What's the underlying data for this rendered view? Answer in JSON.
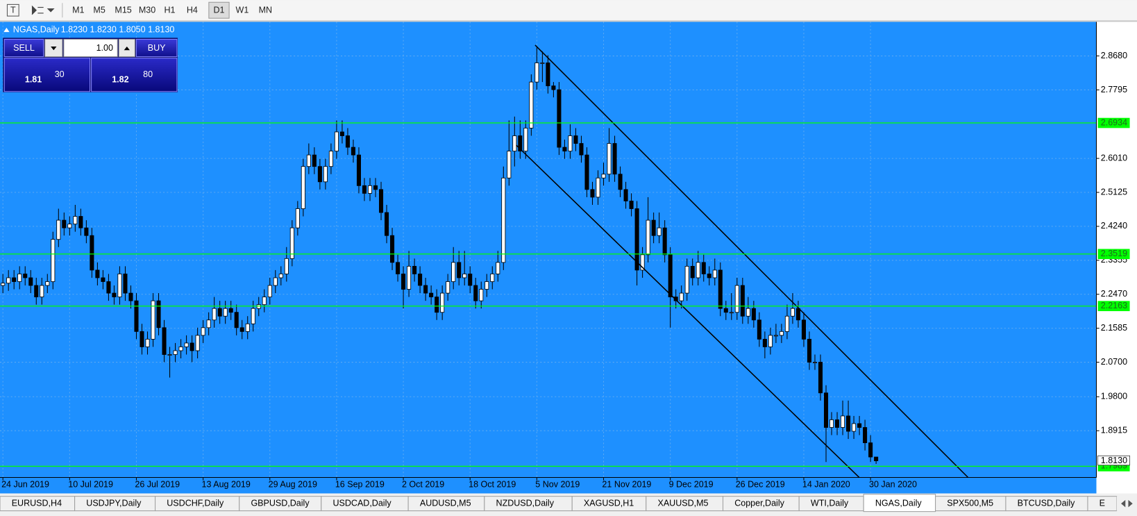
{
  "toolbar": {
    "periods": [
      "M1",
      "M5",
      "M15",
      "M30",
      "H1",
      "H4",
      "D1",
      "W1",
      "MN"
    ],
    "active_index": 6
  },
  "chart_data": {
    "type": "candlestick",
    "title": "NGAS,Daily",
    "quote": [
      "1.8230",
      "1.8230",
      "1.8050",
      "1.8130"
    ],
    "categories": [
      "24 Jun 2019",
      null,
      null,
      null,
      null,
      null,
      null,
      null,
      null,
      null,
      null,
      null,
      "10 Jul 2019",
      null,
      null,
      null,
      null,
      null,
      null,
      null,
      null,
      null,
      null,
      null,
      "26 Jul 2019",
      null,
      null,
      null,
      null,
      null,
      null,
      null,
      null,
      null,
      null,
      null,
      "13 Aug 2019",
      null,
      null,
      null,
      null,
      null,
      null,
      null,
      null,
      null,
      null,
      null,
      "29 Aug 2019",
      null,
      null,
      null,
      null,
      null,
      null,
      null,
      null,
      null,
      null,
      null,
      "16 Sep 2019",
      null,
      null,
      null,
      null,
      null,
      null,
      null,
      null,
      null,
      null,
      null,
      "2 Oct 2019",
      null,
      null,
      null,
      null,
      null,
      null,
      null,
      null,
      null,
      null,
      null,
      "18 Oct 2019",
      null,
      null,
      null,
      null,
      null,
      null,
      null,
      null,
      null,
      null,
      null,
      "5 Nov 2019",
      null,
      null,
      null,
      null,
      null,
      null,
      null,
      null,
      null,
      null,
      null,
      "21 Nov 2019",
      null,
      null,
      null,
      null,
      null,
      null,
      null,
      null,
      null,
      null,
      null,
      "9 Dec 2019",
      null,
      null,
      null,
      null,
      null,
      null,
      null,
      null,
      null,
      null,
      null,
      "26 Dec 2019",
      null,
      null,
      null,
      null,
      null,
      null,
      null,
      null,
      null,
      null,
      null,
      "14 Jan 2020",
      null,
      null,
      null,
      null,
      null,
      null,
      null,
      null,
      null,
      null,
      null,
      "30 Jan 2020",
      null
    ],
    "candles": [
      [
        2.27,
        2.3,
        2.25,
        2.276
      ],
      [
        2.276,
        2.31,
        2.256,
        2.29
      ],
      [
        2.29,
        2.31,
        2.26,
        2.28
      ],
      [
        2.28,
        2.32,
        2.26,
        2.3
      ],
      [
        2.3,
        2.32,
        2.27,
        2.29
      ],
      [
        2.29,
        2.31,
        2.25,
        2.27
      ],
      [
        2.27,
        2.29,
        2.22,
        2.24
      ],
      [
        2.24,
        2.29,
        2.22,
        2.27
      ],
      [
        2.27,
        2.3,
        2.25,
        2.28
      ],
      [
        2.28,
        2.41,
        2.26,
        2.39
      ],
      [
        2.39,
        2.47,
        2.37,
        2.44
      ],
      [
        2.44,
        2.46,
        2.4,
        2.42
      ],
      [
        2.42,
        2.45,
        2.4,
        2.43
      ],
      [
        2.43,
        2.48,
        2.41,
        2.45
      ],
      [
        2.45,
        2.47,
        2.4,
        2.42
      ],
      [
        2.42,
        2.44,
        2.38,
        2.4
      ],
      [
        2.4,
        2.42,
        2.29,
        2.31
      ],
      [
        2.31,
        2.33,
        2.27,
        2.29
      ],
      [
        2.29,
        2.31,
        2.26,
        2.28
      ],
      [
        2.28,
        2.3,
        2.23,
        2.25
      ],
      [
        2.25,
        2.27,
        2.22,
        2.24
      ],
      [
        2.24,
        2.32,
        2.22,
        2.3
      ],
      [
        2.3,
        2.32,
        2.23,
        2.25
      ],
      [
        2.25,
        2.27,
        2.21,
        2.23
      ],
      [
        2.23,
        2.25,
        2.13,
        2.15
      ],
      [
        2.15,
        2.17,
        2.09,
        2.11
      ],
      [
        2.11,
        2.15,
        2.09,
        2.13
      ],
      [
        2.13,
        2.25,
        2.11,
        2.23
      ],
      [
        2.23,
        2.25,
        2.14,
        2.16
      ],
      [
        2.16,
        2.18,
        2.07,
        2.09
      ],
      [
        2.09,
        2.11,
        2.03,
        2.09
      ],
      [
        2.09,
        2.12,
        2.07,
        2.1
      ],
      [
        2.1,
        2.13,
        2.08,
        2.11
      ],
      [
        2.11,
        2.14,
        2.09,
        2.12
      ],
      [
        2.12,
        2.14,
        2.07,
        2.1
      ],
      [
        2.1,
        2.16,
        2.08,
        2.14
      ],
      [
        2.14,
        2.18,
        2.12,
        2.16
      ],
      [
        2.16,
        2.2,
        2.14,
        2.18
      ],
      [
        2.18,
        2.24,
        2.16,
        2.21
      ],
      [
        2.21,
        2.23,
        2.17,
        2.19
      ],
      [
        2.19,
        2.23,
        2.17,
        2.21
      ],
      [
        2.21,
        2.23,
        2.18,
        2.2
      ],
      [
        2.2,
        2.22,
        2.14,
        2.16
      ],
      [
        2.16,
        2.18,
        2.13,
        2.15
      ],
      [
        2.15,
        2.19,
        2.13,
        2.17
      ],
      [
        2.17,
        2.23,
        2.15,
        2.21
      ],
      [
        2.21,
        2.24,
        2.19,
        2.22
      ],
      [
        2.22,
        2.26,
        2.2,
        2.24
      ],
      [
        2.24,
        2.29,
        2.22,
        2.27
      ],
      [
        2.27,
        2.31,
        2.25,
        2.29
      ],
      [
        2.29,
        2.32,
        2.27,
        2.3
      ],
      [
        2.3,
        2.37,
        2.28,
        2.34
      ],
      [
        2.34,
        2.44,
        2.32,
        2.42
      ],
      [
        2.42,
        2.49,
        2.4,
        2.47
      ],
      [
        2.47,
        2.6,
        2.45,
        2.58
      ],
      [
        2.58,
        2.64,
        2.56,
        2.61
      ],
      [
        2.61,
        2.63,
        2.56,
        2.58
      ],
      [
        2.58,
        2.6,
        2.52,
        2.54
      ],
      [
        2.54,
        2.6,
        2.52,
        2.58
      ],
      [
        2.58,
        2.64,
        2.56,
        2.62
      ],
      [
        2.62,
        2.7,
        2.6,
        2.67
      ],
      [
        2.67,
        2.7,
        2.64,
        2.66
      ],
      [
        2.66,
        2.68,
        2.61,
        2.63
      ],
      [
        2.63,
        2.65,
        2.59,
        2.61
      ],
      [
        2.61,
        2.63,
        2.51,
        2.53
      ],
      [
        2.53,
        2.55,
        2.49,
        2.51
      ],
      [
        2.51,
        2.55,
        2.49,
        2.53
      ],
      [
        2.53,
        2.55,
        2.5,
        2.52
      ],
      [
        2.52,
        2.54,
        2.44,
        2.46
      ],
      [
        2.46,
        2.48,
        2.38,
        2.4
      ],
      [
        2.4,
        2.42,
        2.31,
        2.33
      ],
      [
        2.33,
        2.35,
        2.28,
        2.3
      ],
      [
        2.3,
        2.32,
        2.21,
        2.26
      ],
      [
        2.26,
        2.36,
        2.24,
        2.32
      ],
      [
        2.32,
        2.34,
        2.28,
        2.3
      ],
      [
        2.3,
        2.32,
        2.25,
        2.27
      ],
      [
        2.27,
        2.29,
        2.23,
        2.25
      ],
      [
        2.25,
        2.27,
        2.22,
        2.24
      ],
      [
        2.24,
        2.26,
        2.18,
        2.2
      ],
      [
        2.2,
        2.27,
        2.18,
        2.25
      ],
      [
        2.25,
        2.3,
        2.23,
        2.28
      ],
      [
        2.28,
        2.37,
        2.26,
        2.33
      ],
      [
        2.33,
        2.36,
        2.27,
        2.29
      ],
      [
        2.29,
        2.36,
        2.27,
        2.3
      ],
      [
        2.3,
        2.32,
        2.25,
        2.27
      ],
      [
        2.27,
        2.29,
        2.21,
        2.23
      ],
      [
        2.23,
        2.28,
        2.21,
        2.26
      ],
      [
        2.26,
        2.3,
        2.24,
        2.28
      ],
      [
        2.28,
        2.32,
        2.26,
        2.3
      ],
      [
        2.3,
        2.36,
        2.28,
        2.33
      ],
      [
        2.33,
        2.58,
        2.31,
        2.55
      ],
      [
        2.55,
        2.7,
        2.53,
        2.62
      ],
      [
        2.62,
        2.71,
        2.58,
        2.66
      ],
      [
        2.66,
        2.7,
        2.6,
        2.62
      ],
      [
        2.62,
        2.7,
        2.6,
        2.68
      ],
      [
        2.68,
        2.82,
        2.66,
        2.8
      ],
      [
        2.8,
        2.89,
        2.78,
        2.85
      ],
      [
        2.85,
        2.88,
        2.8,
        2.85
      ],
      [
        2.85,
        2.87,
        2.77,
        2.79
      ],
      [
        2.79,
        2.8,
        2.76,
        2.78
      ],
      [
        2.78,
        2.8,
        2.61,
        2.63
      ],
      [
        2.63,
        2.65,
        2.6,
        2.62
      ],
      [
        2.62,
        2.69,
        2.6,
        2.66
      ],
      [
        2.66,
        2.68,
        2.62,
        2.64
      ],
      [
        2.64,
        2.66,
        2.59,
        2.61
      ],
      [
        2.61,
        2.63,
        2.5,
        2.52
      ],
      [
        2.52,
        2.54,
        2.48,
        2.5
      ],
      [
        2.5,
        2.57,
        2.48,
        2.55
      ],
      [
        2.55,
        2.59,
        2.53,
        2.56
      ],
      [
        2.56,
        2.68,
        2.54,
        2.64
      ],
      [
        2.64,
        2.66,
        2.54,
        2.56
      ],
      [
        2.56,
        2.58,
        2.5,
        2.52
      ],
      [
        2.52,
        2.54,
        2.47,
        2.49
      ],
      [
        2.49,
        2.51,
        2.45,
        2.47
      ],
      [
        2.47,
        2.49,
        2.27,
        2.31
      ],
      [
        2.31,
        2.37,
        2.29,
        2.35
      ],
      [
        2.35,
        2.5,
        2.33,
        2.44
      ],
      [
        2.44,
        2.46,
        2.38,
        2.4
      ],
      [
        2.4,
        2.46,
        2.38,
        2.42
      ],
      [
        2.42,
        2.44,
        2.33,
        2.35
      ],
      [
        2.35,
        2.37,
        2.16,
        2.24
      ],
      [
        2.24,
        2.26,
        2.21,
        2.23
      ],
      [
        2.23,
        2.27,
        2.21,
        2.25
      ],
      [
        2.25,
        2.34,
        2.23,
        2.32
      ],
      [
        2.32,
        2.34,
        2.27,
        2.29
      ],
      [
        2.29,
        2.36,
        2.27,
        2.33
      ],
      [
        2.33,
        2.35,
        2.28,
        2.3
      ],
      [
        2.3,
        2.32,
        2.27,
        2.29
      ],
      [
        2.29,
        2.34,
        2.27,
        2.31
      ],
      [
        2.31,
        2.33,
        2.19,
        2.21
      ],
      [
        2.21,
        2.23,
        2.18,
        2.2
      ],
      [
        2.2,
        2.25,
        2.18,
        2.2
      ],
      [
        2.2,
        2.29,
        2.18,
        2.27
      ],
      [
        2.27,
        2.29,
        2.17,
        2.19
      ],
      [
        2.19,
        2.24,
        2.17,
        2.21
      ],
      [
        2.21,
        2.23,
        2.16,
        2.18
      ],
      [
        2.18,
        2.2,
        2.11,
        2.13
      ],
      [
        2.13,
        2.15,
        2.08,
        2.11
      ],
      [
        2.11,
        2.16,
        2.09,
        2.14
      ],
      [
        2.14,
        2.17,
        2.12,
        2.14
      ],
      [
        2.14,
        2.17,
        2.12,
        2.15
      ],
      [
        2.15,
        2.22,
        2.13,
        2.19
      ],
      [
        2.19,
        2.25,
        2.17,
        2.21
      ],
      [
        2.21,
        2.23,
        2.16,
        2.18
      ],
      [
        2.18,
        2.2,
        2.11,
        2.13
      ],
      [
        2.13,
        2.15,
        2.05,
        2.07
      ],
      [
        2.07,
        2.09,
        2.05,
        2.07
      ],
      [
        2.07,
        2.09,
        1.97,
        1.99
      ],
      [
        1.99,
        2.01,
        1.81,
        1.9
      ],
      [
        1.9,
        1.94,
        1.88,
        1.92
      ],
      [
        1.92,
        1.94,
        1.88,
        1.9
      ],
      [
        1.9,
        1.97,
        1.88,
        1.93
      ],
      [
        1.93,
        1.97,
        1.87,
        1.89
      ],
      [
        1.89,
        1.93,
        1.87,
        1.91
      ],
      [
        1.91,
        1.93,
        1.88,
        1.9
      ],
      [
        1.9,
        1.92,
        1.84,
        1.86
      ],
      [
        1.86,
        1.88,
        1.81,
        1.823
      ],
      [
        1.823,
        1.823,
        1.805,
        1.813
      ]
    ],
    "ylim": [
      1.7697,
      2.9568
    ],
    "yticks": [
      {
        "value": 2.868,
        "label": "2.8680"
      },
      {
        "value": 2.7795,
        "label": "2.7795"
      },
      {
        "value": 2.601,
        "label": "2.6010"
      },
      {
        "value": 2.5125,
        "label": "2.5125"
      },
      {
        "value": 2.424,
        "label": "2.4240"
      },
      {
        "value": 2.3355,
        "label": "2.3355"
      },
      {
        "value": 2.247,
        "label": "2.2470"
      },
      {
        "value": 2.1585,
        "label": "2.1585"
      },
      {
        "value": 2.07,
        "label": "2.0700"
      },
      {
        "value": 1.98,
        "label": "1.9800"
      },
      {
        "value": 1.8915,
        "label": "1.8915"
      }
    ],
    "levels": [
      {
        "value": 2.6934,
        "label": "2.6934"
      },
      {
        "value": 2.3519,
        "label": "2.3519"
      },
      {
        "value": 2.2163,
        "label": "2.2163"
      },
      {
        "value": 1.7989,
        "label": "1.7989"
      }
    ],
    "bid": {
      "value": 1.813,
      "label": "1.8130"
    },
    "background": "#1e90ff",
    "up_color": "#ffffff",
    "down_color": "#000000",
    "level_color": "#00ff00",
    "grid": true
  },
  "trade_panel": {
    "sell": "SELL",
    "buy": "BUY",
    "lots": "1.00",
    "sell_big": "1.81",
    "sell_pips": "30",
    "buy_big": "1.82",
    "buy_pips": "80"
  },
  "tabs": {
    "items": [
      "EURUSD,H4",
      "USDJPY,Daily",
      "USDCHF,Daily",
      "GBPUSD,Daily",
      "USDCAD,Daily",
      "AUDUSD,M5",
      "NZDUSD,Daily",
      "XAGUSD,H1",
      "XAUUSD,M5",
      "Copper,Daily",
      "WTI,Daily",
      "NGAS,Daily",
      "SPX500,M5",
      "BTCUSD,Daily",
      "E"
    ],
    "active_index": 11
  }
}
